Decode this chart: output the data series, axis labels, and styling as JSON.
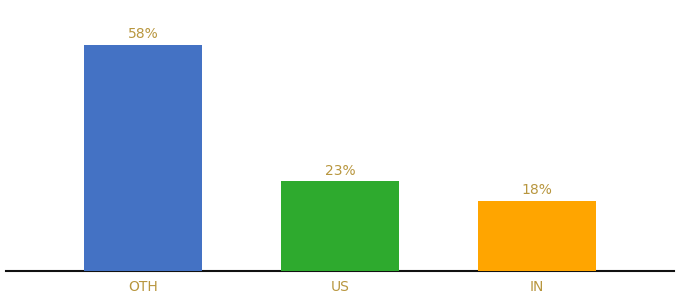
{
  "categories": [
    "OTH",
    "US",
    "IN"
  ],
  "values": [
    58,
    23,
    18
  ],
  "bar_colors": [
    "#4472C4",
    "#2EAA2E",
    "#FFA500"
  ],
  "labels": [
    "58%",
    "23%",
    "18%"
  ],
  "label_color": "#B8963E",
  "ylim": [
    0,
    68
  ],
  "bar_width": 0.6,
  "background_color": "#ffffff",
  "label_fontsize": 10,
  "tick_fontsize": 10,
  "tick_color": "#B8963E",
  "spine_color": "#111111"
}
